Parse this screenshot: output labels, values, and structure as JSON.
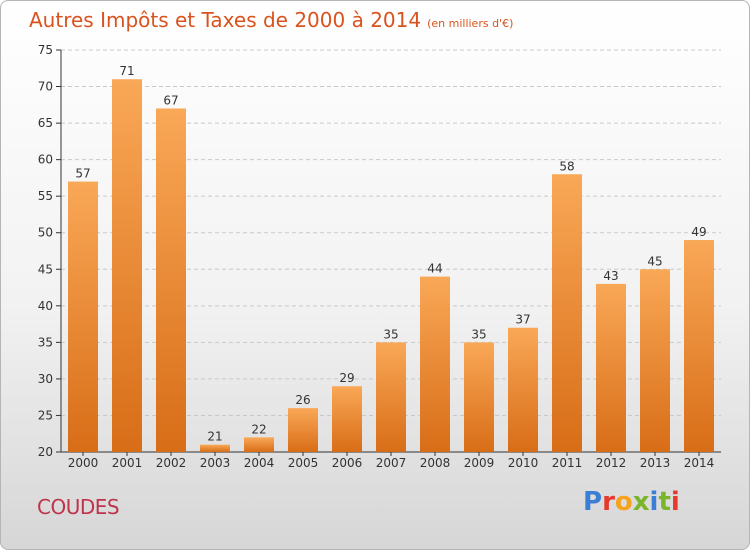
{
  "title": "Autres Impôts et Taxes de 2000 à 2014",
  "subtitle": "(en milliers d'€)",
  "commune": "COUDES",
  "brand": {
    "text": "Proxiti",
    "colors": [
      "#3a7fd5",
      "#e63a2e",
      "#f7a21b",
      "#7ab52a",
      "#3a7fd5",
      "#7ab52a",
      "#e63a2e"
    ]
  },
  "colors": {
    "bar_top": "#f9a857",
    "bar_bottom": "#d86d17",
    "title": "#d9531e"
  },
  "chart_data": {
    "type": "bar",
    "categories": [
      "2000",
      "2001",
      "2002",
      "2003",
      "2004",
      "2005",
      "2006",
      "2007",
      "2008",
      "2009",
      "2010",
      "2011",
      "2012",
      "2013",
      "2014"
    ],
    "values": [
      57,
      71,
      67,
      21,
      22,
      26,
      29,
      35,
      44,
      35,
      37,
      58,
      43,
      45,
      49
    ],
    "ylim": [
      20,
      75
    ],
    "yticks": [
      20,
      25,
      30,
      35,
      40,
      45,
      50,
      55,
      60,
      65,
      70,
      75
    ],
    "grid": true,
    "legend": "none"
  }
}
